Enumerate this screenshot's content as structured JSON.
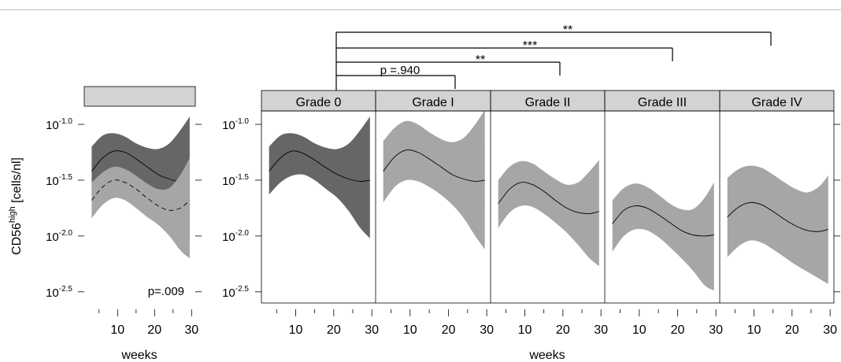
{
  "chart_data": {
    "type": "area",
    "ylabel": "CD56high [cells/nl]",
    "ylabel_main": "CD56",
    "ylabel_sup": "high",
    "ylabel_unit": " [cells/nl]",
    "xlabel": "weeks",
    "xlim": [
      1,
      31
    ],
    "ylim": [
      -2.6,
      -0.88
    ],
    "y_scale": "log10",
    "x_ticks": [
      10,
      20,
      30
    ],
    "y_ticks": [
      -1.0,
      -1.5,
      -2.0,
      -2.5
    ],
    "y_tick_base": "10",
    "y_tick_labels": [
      "-1.0",
      "-1.5",
      "-2.0",
      "-2.5"
    ],
    "colors": {
      "dark_band": "#666666",
      "light_band": "#a6a6a6",
      "strip": "#d3d3d3",
      "line": "#000000"
    },
    "left_panel": {
      "strip_label": "",
      "p_value_label": "p=.009",
      "series": [
        {
          "style": "solid",
          "band_color": "#666666",
          "x": [
            3,
            6,
            9,
            12,
            15,
            18,
            21,
            24,
            27,
            29.5
          ],
          "y": [
            -1.42,
            -1.3,
            -1.24,
            -1.25,
            -1.31,
            -1.38,
            -1.45,
            -1.49,
            -1.51,
            -1.5
          ],
          "upper": [
            -1.2,
            -1.1,
            -1.08,
            -1.11,
            -1.17,
            -1.21,
            -1.22,
            -1.17,
            -1.05,
            -0.93
          ],
          "lower": [
            -1.63,
            -1.52,
            -1.46,
            -1.45,
            -1.5,
            -1.58,
            -1.66,
            -1.78,
            -1.93,
            -2.02
          ]
        },
        {
          "style": "dashed",
          "band_color": "#a6a6a6",
          "x": [
            3,
            6,
            9,
            12,
            15,
            18,
            21,
            24,
            27,
            29.5
          ],
          "y": [
            -1.68,
            -1.56,
            -1.5,
            -1.52,
            -1.58,
            -1.66,
            -1.73,
            -1.77,
            -1.75,
            -1.68
          ],
          "upper": [
            -1.52,
            -1.43,
            -1.38,
            -1.4,
            -1.46,
            -1.53,
            -1.58,
            -1.57,
            -1.45,
            -1.3
          ],
          "lower": [
            -1.84,
            -1.72,
            -1.66,
            -1.68,
            -1.75,
            -1.83,
            -1.9,
            -2.0,
            -2.13,
            -2.2
          ]
        }
      ]
    },
    "panels": [
      {
        "label": "Grade 0",
        "band_color": "#666666",
        "x": [
          3,
          6,
          9,
          12,
          15,
          18,
          21,
          24,
          27,
          29.5
        ],
        "y": [
          -1.42,
          -1.3,
          -1.24,
          -1.26,
          -1.32,
          -1.39,
          -1.45,
          -1.49,
          -1.51,
          -1.5
        ],
        "upper": [
          -1.2,
          -1.1,
          -1.08,
          -1.11,
          -1.17,
          -1.21,
          -1.22,
          -1.17,
          -1.05,
          -0.93
        ],
        "lower": [
          -1.63,
          -1.52,
          -1.46,
          -1.45,
          -1.5,
          -1.58,
          -1.66,
          -1.78,
          -1.93,
          -2.02
        ]
      },
      {
        "label": "Grade I",
        "band_color": "#a6a6a6",
        "x": [
          3,
          6,
          9,
          12,
          15,
          18,
          21,
          24,
          27,
          29.5
        ],
        "y": [
          -1.42,
          -1.29,
          -1.23,
          -1.25,
          -1.31,
          -1.38,
          -1.45,
          -1.49,
          -1.51,
          -1.5
        ],
        "upper": [
          -1.15,
          -1.03,
          -0.97,
          -1.0,
          -1.07,
          -1.13,
          -1.16,
          -1.12,
          -1.0,
          -0.87
        ],
        "lower": [
          -1.7,
          -1.56,
          -1.5,
          -1.51,
          -1.56,
          -1.63,
          -1.72,
          -1.84,
          -2.0,
          -2.12
        ]
      },
      {
        "label": "Grade II",
        "band_color": "#a6a6a6",
        "x": [
          3,
          6,
          9,
          12,
          15,
          18,
          21,
          24,
          27,
          29.5
        ],
        "y": [
          -1.71,
          -1.58,
          -1.52,
          -1.54,
          -1.6,
          -1.68,
          -1.75,
          -1.79,
          -1.8,
          -1.78
        ],
        "upper": [
          -1.5,
          -1.38,
          -1.33,
          -1.35,
          -1.42,
          -1.49,
          -1.54,
          -1.52,
          -1.42,
          -1.32
        ],
        "lower": [
          -1.93,
          -1.79,
          -1.73,
          -1.74,
          -1.8,
          -1.88,
          -1.97,
          -2.08,
          -2.2,
          -2.27
        ]
      },
      {
        "label": "Grade III",
        "band_color": "#a6a6a6",
        "x": [
          3,
          6,
          9,
          12,
          15,
          18,
          21,
          24,
          27,
          29.5
        ],
        "y": [
          -1.89,
          -1.77,
          -1.73,
          -1.75,
          -1.81,
          -1.88,
          -1.95,
          -1.99,
          -2.0,
          -1.99
        ],
        "upper": [
          -1.68,
          -1.57,
          -1.53,
          -1.56,
          -1.63,
          -1.71,
          -1.76,
          -1.76,
          -1.66,
          -1.52
        ],
        "lower": [
          -2.14,
          -2.0,
          -1.94,
          -1.95,
          -2.01,
          -2.1,
          -2.2,
          -2.31,
          -2.44,
          -2.49
        ]
      },
      {
        "label": "Grade IV",
        "band_color": "#a6a6a6",
        "x": [
          3,
          6,
          9,
          12,
          15,
          18,
          21,
          24,
          27,
          29.5
        ],
        "y": [
          -1.83,
          -1.74,
          -1.7,
          -1.72,
          -1.78,
          -1.85,
          -1.91,
          -1.95,
          -1.96,
          -1.94
        ],
        "upper": [
          -1.48,
          -1.4,
          -1.37,
          -1.39,
          -1.45,
          -1.52,
          -1.58,
          -1.61,
          -1.56,
          -1.46
        ],
        "lower": [
          -2.19,
          -2.09,
          -2.04,
          -2.06,
          -2.12,
          -2.19,
          -2.26,
          -2.32,
          -2.38,
          -2.43
        ]
      }
    ],
    "comparisons": [
      {
        "from": "Grade 0",
        "to": "Grade I",
        "label": "p =.940"
      },
      {
        "from": "Grade 0",
        "to": "Grade II",
        "label": "**"
      },
      {
        "from": "Grade 0",
        "to": "Grade III",
        "label": "***"
      },
      {
        "from": "Grade 0",
        "to": "Grade IV",
        "label": "**"
      }
    ]
  }
}
